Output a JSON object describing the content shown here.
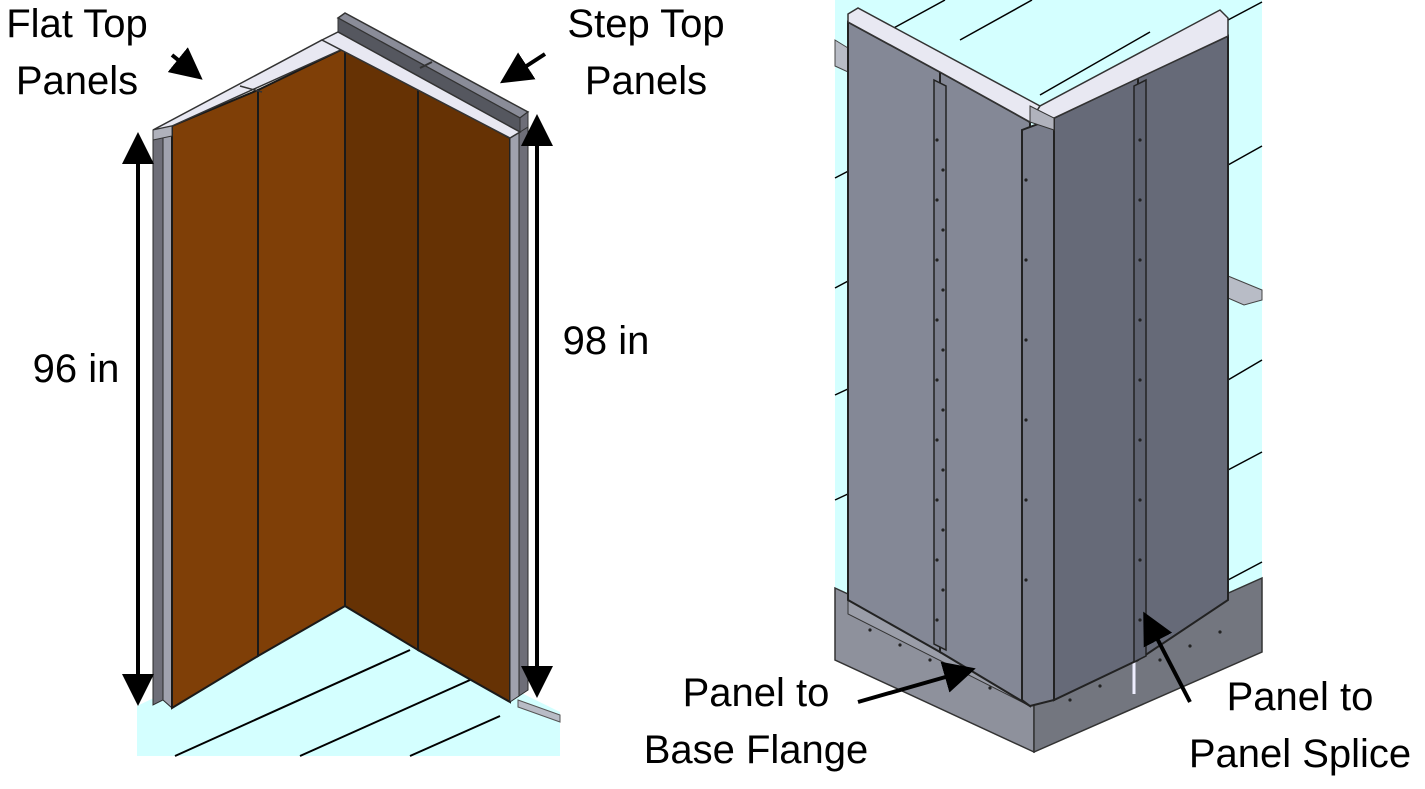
{
  "labels": {
    "flat_top_line1": "Flat Top",
    "flat_top_line2": "Panels",
    "step_top_line1": "Step Top",
    "step_top_line2": "Panels",
    "height_left": "96 in",
    "height_right": "98 in",
    "base_flange_line1": "Panel to",
    "base_flange_line2": "Base Flange",
    "splice_line1": "Panel to",
    "splice_line2": "Panel Splice"
  },
  "colors": {
    "panel_left": "#7f3f07",
    "panel_right": "#663204",
    "floor": "#d4ffff",
    "frame": "#6e6e78",
    "frame_light": "#e8e8f2",
    "steel_left": "#848896",
    "steel_right": "#666a78",
    "base": "#8e919c"
  }
}
